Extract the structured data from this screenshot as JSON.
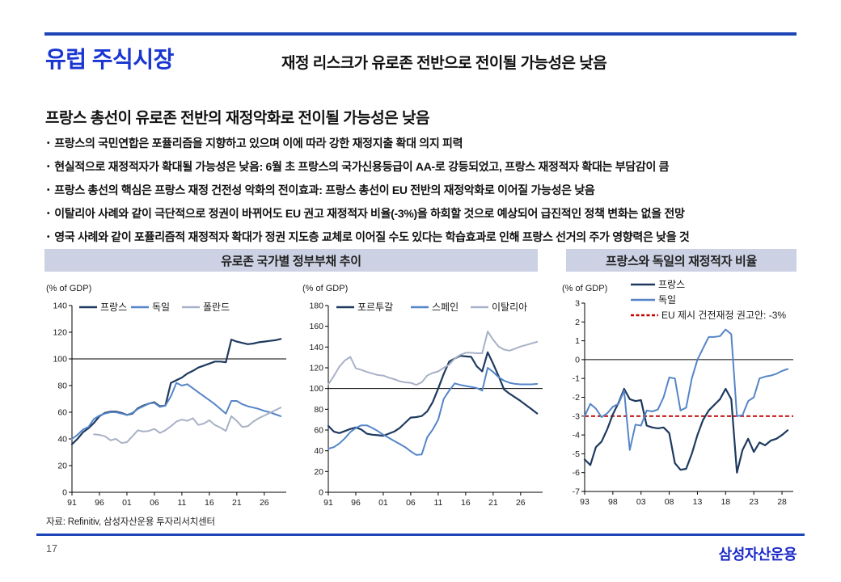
{
  "page": {
    "title": "유럽 주식시장",
    "subtitle": "재정 리스크가 유로존 전반으로 전이될 가능성은 낮음"
  },
  "section": {
    "heading": "프랑스 총선이 유로존 전반의 재정악화로 전이될 가능성은 낮음",
    "bullet_marker": "•",
    "bullets": [
      "프랑스의 국민연합은 포퓰리즘을 지향하고 있으며 이에 따라 강한 재정지출 확대 의지 피력",
      "현실적으로 재정적자가 확대될 가능성은 낮음: 6월 초 프랑스의 국가신용등급이 AA-로 강등되었고, 프랑스 재정적자 확대는 부담감이 큼",
      "프랑스 총선의 핵심은 프랑스 재정 건전성 악화의 전이효과: 프랑스 총선이 EU 전반의 재정악화로 이어질 가능성은 낮음",
      "이탈리아 사례와 같이 극단적으로 정권이 바뀌어도 EU 권고 재정적자 비율(-3%)을 하회할 것으로 예상되어 급진적인 정책 변화는 없을 전망",
      "영국 사례와 같이 포퓰리즘적 재정적자 확대가 정권 지도층 교체로 이어질 수도 있다는 학습효과로 인해 프랑스 선거의 주가 영향력은 낮을 것"
    ]
  },
  "panels": {
    "left_title": "유로존 국가별 정부부채 추이",
    "right_title": "프랑스와 독일의 재정적자 비율"
  },
  "footer": {
    "source": "자료: Refinitiv, 삼성자산운용 투자리서치센터",
    "page_number": "17",
    "logo": "삼성자산운용"
  },
  "colors": {
    "accent_blue": "#1a36d2",
    "rule_blue": "#1d45b8",
    "navy": "#1f3a5f",
    "blue": "#5585c8",
    "gray_blue": "#a8b1c7",
    "red": "#c00000",
    "panel_bg": "#ccd1e3"
  },
  "chart_data": [
    {
      "type": "line",
      "title": "유로존 국가별 정부부채 추이 (핵심국)",
      "ylabel": "(% of GDP)",
      "ylim": [
        0,
        140
      ],
      "ytick_step": 20,
      "xlim": [
        1991,
        2030
      ],
      "xticks": {
        "values": [
          1991,
          1996,
          2001,
          2006,
          2011,
          2016,
          2021,
          2026
        ],
        "labels": [
          "91",
          "96",
          "01",
          "06",
          "11",
          "16",
          "21",
          "26"
        ]
      },
      "ref_lines": [
        {
          "y": 100,
          "color": "#000000",
          "w": 1
        }
      ],
      "series": [
        {
          "name": "프랑스",
          "color": "#1f3a5f",
          "w": 2.2,
          "x_start": 1991,
          "values": [
            36,
            40,
            45,
            48,
            52,
            57,
            59.5,
            60.5,
            60.5,
            59.5,
            58,
            59,
            63,
            65,
            66.5,
            67.5,
            64.5,
            65,
            82,
            84,
            86,
            89,
            91,
            93.5,
            95,
            96.5,
            98,
            98,
            97.5,
            114.5,
            113,
            112,
            111,
            111.5,
            112.5,
            113,
            113.5,
            114,
            115
          ]
        },
        {
          "name": "독일",
          "color": "#5585c8",
          "w": 2,
          "x_start": 1991,
          "values": [
            40,
            43,
            47,
            49,
            55,
            57.5,
            59,
            60,
            60,
            59,
            58,
            59.5,
            62.5,
            64.5,
            66.5,
            67,
            64,
            65,
            72,
            82,
            80,
            81,
            78,
            75,
            72,
            69,
            66,
            62.5,
            59,
            68.5,
            68.5,
            66,
            64.5,
            63.5,
            62.5,
            61,
            60,
            58.5,
            57
          ]
        },
        {
          "name": "폴란드",
          "color": "#a8b1c7",
          "w": 2,
          "x_start": 1995,
          "values": [
            43.5,
            43,
            42,
            39,
            40,
            37,
            37.5,
            42,
            46.5,
            45.5,
            46,
            47.5,
            44.5,
            46.5,
            49.5,
            53,
            54.5,
            53.5,
            55.5,
            50.5,
            51.5,
            54,
            50.5,
            48.5,
            46,
            57,
            53.5,
            49,
            49.5,
            53,
            55.5,
            57.5,
            59.5,
            61.5,
            63.5
          ]
        }
      ],
      "legend_items": [
        {
          "label": "프랑스",
          "color": "#1f3a5f"
        },
        {
          "label": "독일",
          "color": "#5585c8"
        },
        {
          "label": "폴란드",
          "color": "#a8b1c7"
        }
      ]
    },
    {
      "type": "line",
      "title": "유로존 국가별 정부부채 추이 (주변국)",
      "ylabel": "(% of GDP)",
      "ylim": [
        0,
        180
      ],
      "ytick_step": 20,
      "xlim": [
        1991,
        2030
      ],
      "xticks": {
        "values": [
          1991,
          1996,
          2001,
          2006,
          2011,
          2016,
          2021,
          2026
        ],
        "labels": [
          "91",
          "96",
          "01",
          "06",
          "11",
          "16",
          "21",
          "26"
        ]
      },
      "ref_lines": [
        {
          "y": 100,
          "color": "#000000",
          "w": 1
        }
      ],
      "series": [
        {
          "name": "포르투갈",
          "color": "#1f3a5f",
          "w": 2.2,
          "x_start": 1991,
          "values": [
            64,
            58.5,
            57,
            59,
            61,
            62.5,
            60.5,
            56.5,
            55.5,
            55,
            54.5,
            56.5,
            58.5,
            62,
            67,
            72,
            72.5,
            73.5,
            78,
            87,
            100,
            114,
            126,
            129,
            131.5,
            131,
            130.5,
            121.5,
            116.5,
            135,
            124,
            112,
            99,
            95,
            91.5,
            88,
            84,
            80,
            76
          ]
        },
        {
          "name": "스페인",
          "color": "#5585c8",
          "w": 2,
          "x_start": 1991,
          "values": [
            42,
            43.5,
            47,
            52,
            58,
            62,
            64.5,
            64.5,
            62,
            59,
            55.5,
            52.5,
            49.5,
            46.5,
            43.5,
            39.5,
            36,
            36.5,
            53,
            60.5,
            70,
            90,
            98,
            105,
            103.5,
            102.5,
            101.5,
            100.5,
            98,
            120,
            116,
            111,
            107.5,
            105.5,
            104.5,
            104,
            104,
            104,
            104.5
          ]
        },
        {
          "name": "이탈리아",
          "color": "#a8b1c7",
          "w": 2,
          "x_start": 1991,
          "values": [
            104,
            112,
            121,
            127,
            130.5,
            119.5,
            118,
            116,
            114.5,
            113,
            112.5,
            110.5,
            109,
            107,
            106,
            105.5,
            103.5,
            106,
            112.5,
            115,
            116.5,
            120,
            123,
            129,
            132.5,
            134.5,
            134.5,
            134,
            134,
            155,
            147,
            140.5,
            137.5,
            136.5,
            138.5,
            140.5,
            142,
            143.5,
            145
          ]
        }
      ],
      "legend_items": [
        {
          "label": "포르투갈",
          "color": "#1f3a5f"
        },
        {
          "label": "스페인",
          "color": "#5585c8"
        },
        {
          "label": "이탈리아",
          "color": "#a8b1c7"
        }
      ]
    },
    {
      "type": "line",
      "title": "프랑스와 독일의 재정적자 비율",
      "ylabel": "(% of GDP)",
      "ylim": [
        -7,
        3
      ],
      "ytick_step": 1,
      "xlim": [
        1993,
        2030
      ],
      "xticks": {
        "values": [
          1993,
          1998,
          2003,
          2008,
          2013,
          2018,
          2023,
          2028
        ],
        "labels": [
          "93",
          "98",
          "03",
          "08",
          "13",
          "18",
          "23",
          "28"
        ]
      },
      "ref_lines": [
        {
          "y": 0,
          "color": "#000000",
          "w": 1
        },
        {
          "y": -3,
          "color": "#c00000",
          "w": 1.8,
          "dash": "5,3"
        }
      ],
      "series": [
        {
          "name": "프랑스",
          "color": "#1f3a5f",
          "w": 2.2,
          "x_start": 1993,
          "values": [
            -5.3,
            -5.6,
            -4.65,
            -4.35,
            -3.7,
            -2.9,
            -2.3,
            -1.55,
            -2.1,
            -2.2,
            -2.15,
            -3.5,
            -3.6,
            -3.65,
            -3.6,
            -3.9,
            -5.5,
            -5.85,
            -5.8,
            -5.0,
            -4.0,
            -3.2,
            -2.7,
            -2.4,
            -2.1,
            -1.55,
            -2.1,
            -6.0,
            -4.8,
            -4.2,
            -4.9,
            -4.4,
            -4.55,
            -4.3,
            -4.2,
            -4.0,
            -3.75
          ]
        },
        {
          "name": "독일",
          "color": "#5585c8",
          "w": 2,
          "x_start": 1993,
          "values": [
            -3.0,
            -2.35,
            -2.6,
            -3.05,
            -2.85,
            -2.5,
            -2.35,
            -1.65,
            -4.8,
            -3.45,
            -3.5,
            -2.7,
            -2.75,
            -2.65,
            -2.0,
            -0.95,
            -1.0,
            -2.7,
            -2.55,
            -1.0,
            0.0,
            0.6,
            1.2,
            1.2,
            1.25,
            1.6,
            1.35,
            -3.0,
            -2.95,
            -2.2,
            -2.0,
            -1.0,
            -0.9,
            -0.85,
            -0.75,
            -0.6,
            -0.5
          ]
        }
      ],
      "legend_items": [
        {
          "label": "프랑스",
          "color": "#1f3a5f"
        },
        {
          "label": "독일",
          "color": "#5585c8"
        },
        {
          "label": "EU 제시 건전재정 권고안: -3%",
          "color": "#c00000",
          "dash": "4,2.5"
        }
      ]
    }
  ]
}
